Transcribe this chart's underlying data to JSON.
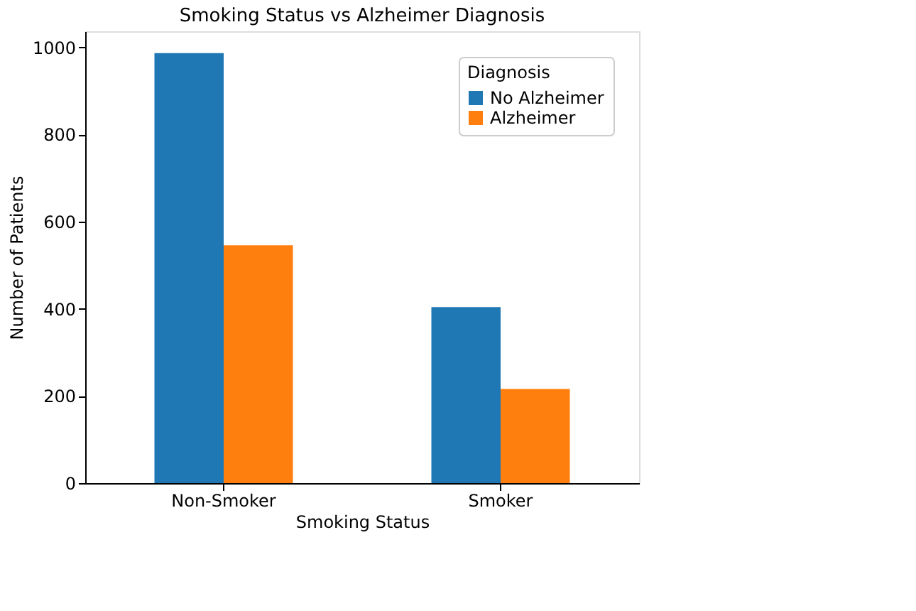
{
  "chart_data": {
    "type": "bar",
    "title": "Smoking Status vs Alzheimer Diagnosis",
    "xlabel": "Smoking Status",
    "ylabel": "Number of Patients",
    "legend_title": "Diagnosis",
    "categories": [
      "Non-Smoker",
      "Smoker"
    ],
    "series": [
      {
        "name": "No Alzheimer",
        "color": "#1f77b4",
        "values": [
          987,
          404
        ]
      },
      {
        "name": "Alzheimer",
        "color": "#ff7f0e",
        "values": [
          546,
          216
        ]
      }
    ],
    "ylim": [
      0,
      1037
    ],
    "yticks": [
      0,
      200,
      400,
      600,
      800,
      1000
    ],
    "grid": false,
    "legend": "top right"
  }
}
